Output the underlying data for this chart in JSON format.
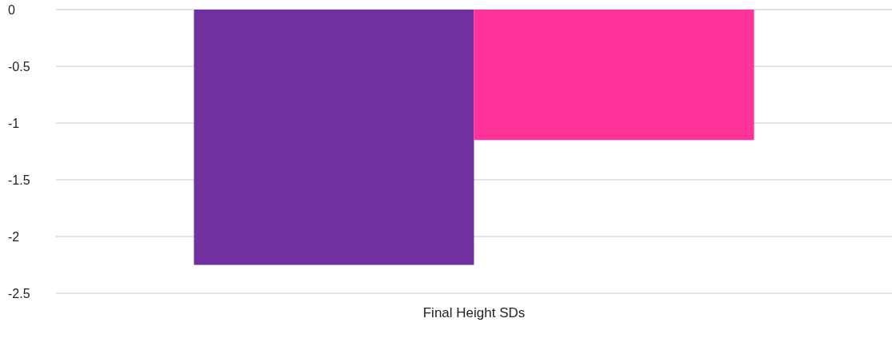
{
  "chart_data": {
    "type": "bar",
    "categories": [
      "Final Height SDs"
    ],
    "series": [
      {
        "color": "#7030a0",
        "values": [
          -2.25
        ]
      },
      {
        "color": "#ff3399",
        "values": [
          -1.15
        ]
      }
    ],
    "ylim": [
      -2.5,
      0
    ],
    "yticks": [
      -2.5,
      -2,
      -1.5,
      -1,
      -0.5,
      0
    ],
    "grid": "y"
  }
}
